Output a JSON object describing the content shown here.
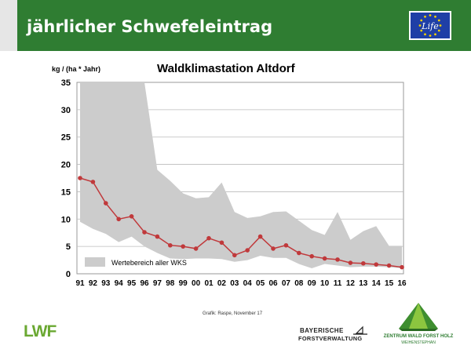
{
  "header": {
    "title": "jährlicher Schwefeleintrag"
  },
  "logos": {
    "eu_life": "Life",
    "lwf": "LWF",
    "bayerische_line1": "BAYERISCHE",
    "bayerische_line2": "FORSTVERWALTUNG",
    "zentrum_line1": "ZENTRUM WALD FORST HOLZ",
    "zentrum_line2": "WEIHENSTEPHAN"
  },
  "credit": "Grafik: Raspe, November 17",
  "colors": {
    "header_green": "#2f7d32",
    "band_gray": "#cccccc",
    "series_red": "#c0393b"
  },
  "chart_data": {
    "type": "line",
    "title": "Waldklimastation Altdorf",
    "ylabel": "kg / (ha * Jahr)",
    "xlabel": "",
    "ylim": [
      0,
      35
    ],
    "yticks": [
      0,
      5,
      10,
      15,
      20,
      25,
      30,
      35
    ],
    "grid": true,
    "legend_position": "bottom-left",
    "x": [
      "91",
      "92",
      "93",
      "94",
      "95",
      "96",
      "97",
      "98",
      "99",
      "00",
      "01",
      "02",
      "03",
      "04",
      "05",
      "06",
      "07",
      "08",
      "09",
      "10",
      "11",
      "12",
      "13",
      "14",
      "15",
      "16"
    ],
    "series": [
      {
        "name": "",
        "color": "#c0393b",
        "values": [
          17.5,
          16.8,
          12.9,
          10.0,
          10.5,
          7.6,
          6.8,
          5.2,
          5.0,
          4.6,
          6.5,
          5.7,
          3.4,
          4.3,
          6.8,
          4.6,
          5.2,
          3.8,
          3.2,
          2.8,
          2.6,
          2.0,
          1.9,
          1.7,
          1.5,
          1.2
        ]
      }
    ],
    "band": {
      "name": "Wertebereich aller WKS",
      "upper": [
        35,
        35,
        35,
        35,
        35,
        35,
        19,
        17,
        14.7,
        13.8,
        14.0,
        16.7,
        11.3,
        10.2,
        10.5,
        11.3,
        11.4,
        9.7,
        8.0,
        7.1,
        11.3,
        6.2,
        7.8,
        8.7,
        5.1,
        5.1
      ],
      "lower": [
        9.5,
        8.2,
        7.3,
        5.8,
        6.8,
        5.0,
        3.8,
        2.8,
        2.7,
        2.8,
        2.8,
        2.7,
        2.2,
        2.5,
        3.3,
        2.9,
        2.9,
        1.8,
        1.0,
        1.8,
        1.5,
        1.2,
        1.3,
        1.3,
        1.2,
        1.0
      ]
    }
  }
}
